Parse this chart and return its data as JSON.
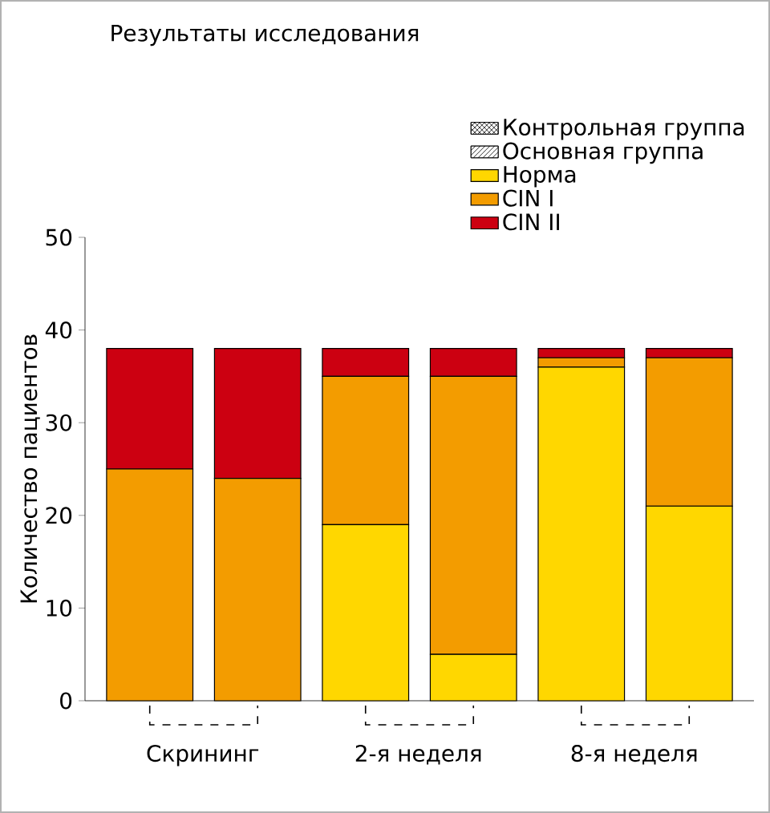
{
  "chart_data": {
    "type": "bar",
    "stacked": true,
    "title": "Результаты исследования",
    "ylabel": "Количество пациентов",
    "categories": [
      "Скрининг",
      null,
      "2-я неделя",
      null,
      "8-я неделя",
      null
    ],
    "ylim": [
      0,
      50
    ],
    "yticks": [
      0,
      10,
      20,
      30,
      40,
      50
    ],
    "legend": "top right",
    "annotations": [
      "Контрольная группа",
      "Основная группа"
    ],
    "series": [
      {
        "name": "Норма",
        "color": "#ffd700",
        "values": [
          0,
          0,
          19,
          5,
          36,
          21
        ]
      },
      {
        "name": "CIN I",
        "color": "#f39c00",
        "values": [
          25,
          24,
          16,
          30,
          1,
          16
        ]
      },
      {
        "name": "CIN II",
        "color": "#cc0011",
        "values": [
          13,
          14,
          3,
          3,
          1,
          1
        ]
      }
    ]
  }
}
